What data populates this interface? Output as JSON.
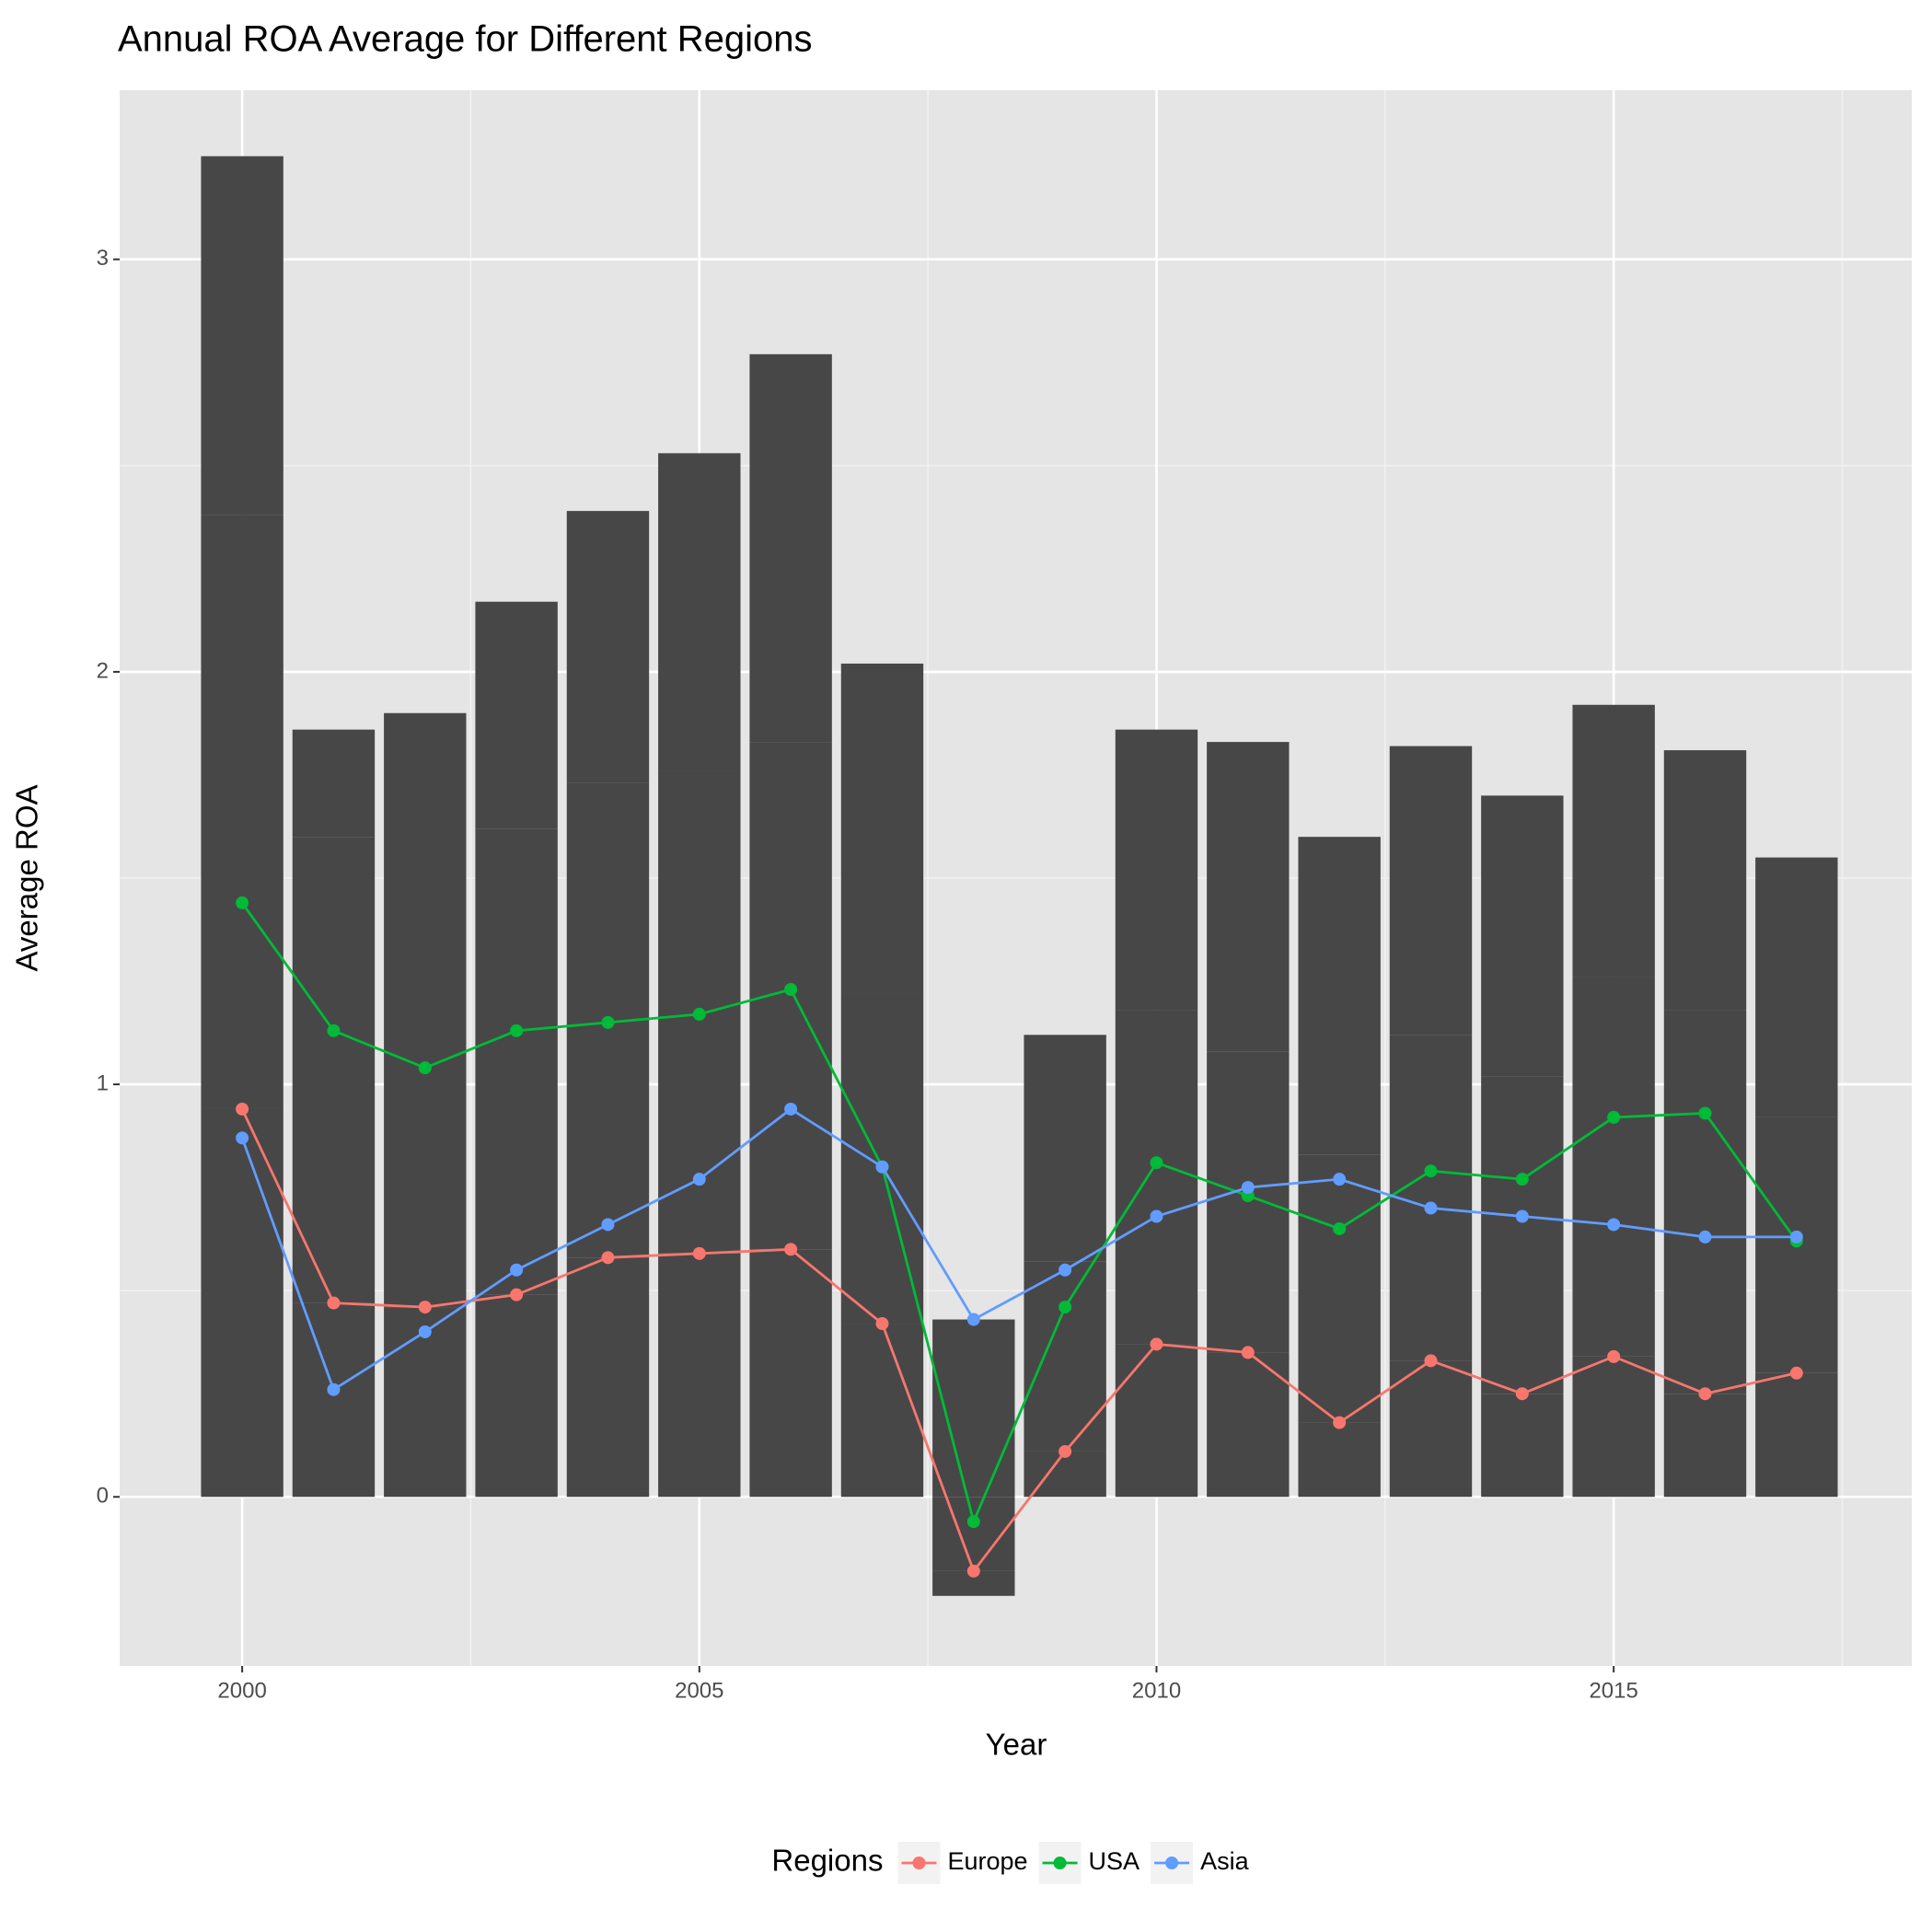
{
  "chart_data": {
    "type": "line",
    "title": "Annual ROA Average for Different Regions",
    "x_label": "Year",
    "y_label": "Average ROA",
    "legend_title": "Regions",
    "legend_position": "bottom",
    "bar_color": "#474747",
    "grid": true,
    "x": [
      2000,
      2001,
      2002,
      2003,
      2004,
      2005,
      2006,
      2007,
      2008,
      2009,
      2010,
      2011,
      2012,
      2013,
      2014,
      2015,
      2016,
      2017
    ],
    "series": [
      {
        "name": "Europe",
        "color": "#f8766d",
        "values": [
          0.94,
          0.47,
          0.46,
          0.49,
          0.58,
          0.59,
          0.6,
          0.42,
          -0.18,
          0.11,
          0.37,
          0.35,
          0.18,
          0.33,
          0.25,
          0.34,
          0.25,
          0.3
        ]
      },
      {
        "name": "USA",
        "color": "#00ba38",
        "values": [
          1.44,
          1.13,
          1.04,
          1.13,
          1.15,
          1.17,
          1.23,
          0.8,
          -0.06,
          0.46,
          0.81,
          0.73,
          0.65,
          0.79,
          0.77,
          0.92,
          0.93,
          0.62
        ]
      },
      {
        "name": "Asia",
        "color": "#619cff",
        "values": [
          0.87,
          0.26,
          0.4,
          0.55,
          0.66,
          0.77,
          0.94,
          0.8,
          0.43,
          0.55,
          0.68,
          0.75,
          0.77,
          0.7,
          0.68,
          0.66,
          0.63,
          0.63
        ]
      }
    ],
    "xlim": [
      1998.66,
      2018.26
    ],
    "xticks": [
      2000,
      2005,
      2010,
      2015
    ],
    "ylim": [
      -0.41,
      3.41
    ],
    "yticks": [
      0,
      1,
      2,
      3
    ]
  }
}
